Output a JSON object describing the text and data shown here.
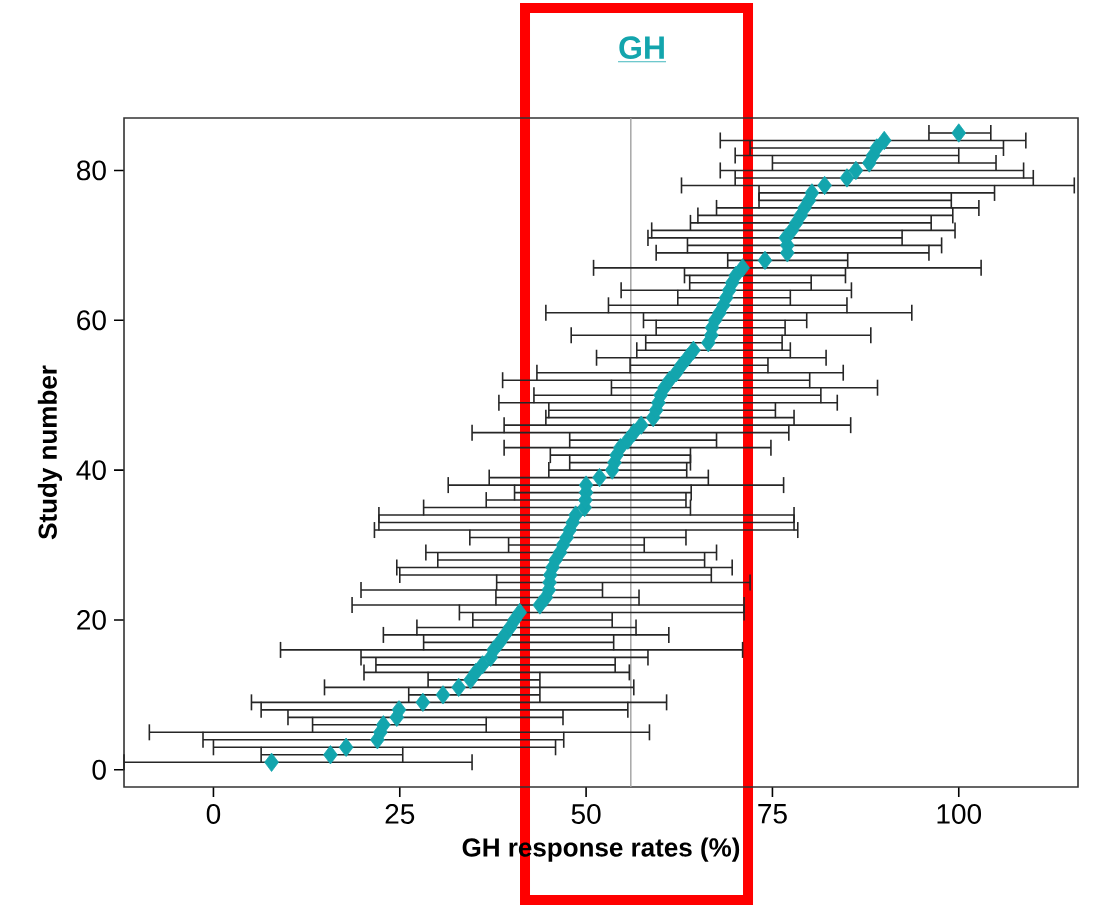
{
  "chart_data": {
    "type": "scatter",
    "title": "GH",
    "xlabel": "GH response rates (%)",
    "ylabel": "Study number",
    "x": [
      7.8,
      15.7,
      17.8,
      22,
      22.4,
      22.8,
      24.6,
      24.9,
      28.1,
      30.8,
      32.9,
      34.5,
      35.2,
      36.1,
      37.2,
      37.6,
      38.4,
      39.1,
      39.8,
      40.4,
      41.1,
      43.8,
      44.6,
      45,
      45.1,
      45.2,
      45.5,
      45.9,
      46.5,
      46.9,
      47.4,
      47.8,
      48.2,
      48.6,
      49.8,
      49.9,
      50,
      50,
      51.8,
      53.5,
      53.8,
      54.1,
      54.6,
      55.6,
      56.4,
      57.4,
      59,
      59.4,
      59.7,
      60,
      60.5,
      61.2,
      62.1,
      62.8,
      63.6,
      64.4,
      66.4,
      66.8,
      66.9,
      67.3,
      67.9,
      68.4,
      68.8,
      69.2,
      69.6,
      70.1,
      71,
      74,
      77,
      77,
      76.8,
      77.6,
      78.2,
      78.8,
      79.3,
      79.9,
      80.3,
      82,
      85,
      86.2,
      88,
      88.5,
      89,
      90,
      100
    ],
    "values": [
      1,
      2,
      3,
      4,
      5,
      6,
      7,
      8,
      9,
      10,
      11,
      12,
      13,
      14,
      15,
      16,
      17,
      18,
      19,
      20,
      21,
      22,
      23,
      24,
      25,
      26,
      27,
      28,
      29,
      30,
      31,
      32,
      33,
      34,
      35,
      36,
      37,
      38,
      39,
      40,
      41,
      42,
      43,
      44,
      45,
      46,
      47,
      48,
      49,
      50,
      51,
      52,
      53,
      54,
      55,
      56,
      57,
      58,
      59,
      60,
      61,
      62,
      63,
      64,
      65,
      66,
      67,
      68,
      69,
      70,
      71,
      72,
      73,
      74,
      75,
      76,
      77,
      78,
      79,
      80,
      81,
      82,
      83,
      84,
      85
    ],
    "xerrors": [
      [
        -12,
        34.7
      ],
      [
        6.4,
        25.4
      ],
      [
        0,
        45.9
      ],
      [
        -1.4,
        47
      ],
      [
        -8.6,
        58.5
      ],
      [
        13.3,
        36.6
      ],
      [
        10,
        46.9
      ],
      [
        6.4,
        55.6
      ],
      [
        5.1,
        60.8
      ],
      [
        26.2,
        43.8
      ],
      [
        14.9,
        56.4
      ],
      [
        28.8,
        43.8
      ],
      [
        20.2,
        55.8
      ],
      [
        21.8,
        53.9
      ],
      [
        19.8,
        58.3
      ],
      [
        9,
        71
      ],
      [
        28.2,
        53.7
      ],
      [
        22.8,
        61.1
      ],
      [
        27.3,
        56.7
      ],
      [
        34.8,
        53.5
      ],
      [
        33,
        71.2
      ],
      [
        18.6,
        71.2
      ],
      [
        37.9,
        57.1
      ],
      [
        19.8,
        52.2
      ],
      [
        38,
        72
      ],
      [
        25,
        66.8
      ],
      [
        24.6,
        69.6
      ],
      [
        30.1,
        65.9
      ],
      [
        28.5,
        67.5
      ],
      [
        39.6,
        57.8
      ],
      [
        34.4,
        63.4
      ],
      [
        21.6,
        78.4
      ],
      [
        22.2,
        77.9
      ],
      [
        22.2,
        77.9
      ],
      [
        28.2,
        64
      ],
      [
        36.6,
        63.4
      ],
      [
        40.4,
        64.1
      ],
      [
        31.5,
        76.5
      ],
      [
        37,
        66.4
      ],
      [
        45,
        63.5
      ],
      [
        47.8,
        64
      ],
      [
        45.2,
        64
      ],
      [
        39,
        74.8
      ],
      [
        47.8,
        67.5
      ],
      [
        34.7,
        77.2
      ],
      [
        39,
        85.5
      ],
      [
        44.6,
        77.9
      ],
      [
        45,
        75.4
      ],
      [
        38.3,
        83.7
      ],
      [
        43,
        81.5
      ],
      [
        53.4,
        89.1
      ],
      [
        38.8,
        80
      ],
      [
        43.4,
        84.5
      ],
      [
        55.9,
        74.4
      ],
      [
        51.4,
        82.2
      ],
      [
        56.8,
        77.4
      ],
      [
        58,
        76.3
      ],
      [
        48,
        88.2
      ],
      [
        59.4,
        76.7
      ],
      [
        57.7,
        79.6
      ],
      [
        44.6,
        93.7
      ],
      [
        53,
        85
      ],
      [
        62.3,
        77.4
      ],
      [
        54.7,
        85.6
      ],
      [
        63.9,
        80.2
      ],
      [
        63.2,
        84.8
      ],
      [
        51,
        103
      ],
      [
        69,
        85.1
      ],
      [
        59.4,
        96
      ],
      [
        63.6,
        97.7
      ],
      [
        58.3,
        92.4
      ],
      [
        58.8,
        99.5
      ],
      [
        64,
        96.3
      ],
      [
        65,
        99.2
      ],
      [
        67.5,
        102.7
      ],
      [
        73.2,
        99
      ],
      [
        73.2,
        104.8
      ],
      [
        62.8,
        115.5
      ],
      [
        70,
        110
      ],
      [
        68,
        108.7
      ],
      [
        75,
        105
      ],
      [
        70,
        100
      ],
      [
        72,
        106
      ],
      [
        68,
        109
      ],
      [
        96,
        104.3
      ]
    ],
    "color": "#13a5ad",
    "marker": "diamond",
    "xlim": [
      -12,
      116
    ],
    "ylim": [
      -2.3,
      87
    ],
    "xticks": [
      0,
      25,
      50,
      75,
      100
    ],
    "yticks": [
      0,
      20,
      40,
      60,
      80
    ],
    "ref_lines": [
      {
        "axis": "x",
        "value": 56,
        "color": "#a0a0a0"
      }
    ]
  }
}
